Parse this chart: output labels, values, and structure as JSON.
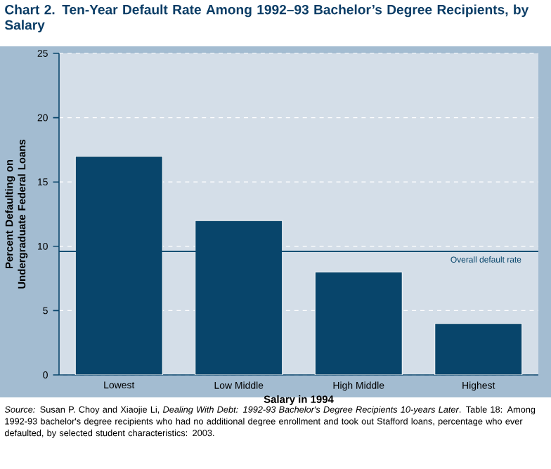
{
  "chart_data": {
    "type": "bar",
    "title": "Chart 2. Ten-Year Default Rate Among 1992–93 Bachelor’s Degree Recipients, by Salary",
    "xlabel": "Salary in 1994",
    "ylabel": "Percent Defaulting on Undergraduate Federal Loans",
    "categories": [
      "Lowest",
      "Low Middle",
      "High Middle",
      "Highest"
    ],
    "values": [
      17,
      12,
      8,
      4
    ],
    "color": "#08456b",
    "ylim": [
      0,
      25
    ],
    "yticks": [
      0,
      5,
      10,
      15,
      20,
      25
    ],
    "grid": "y",
    "ref_lines": [
      {
        "axis": "y",
        "value": 9.6,
        "label": "Overall default rate",
        "color": "#08456b"
      }
    ],
    "annotations": [
      "*Source:* Susan P. Choy and Xiaojie Li, *Dealing With Debt: 1992-93 Bachelor's Degree Recipients 10-years Later*. Table 18: Among 1992-93 bachelor's degree recipients who had no additional degree enrollment and took out Stafford loans, percentage who ever defaulted, by selected student characteristics: 2003."
    ]
  }
}
